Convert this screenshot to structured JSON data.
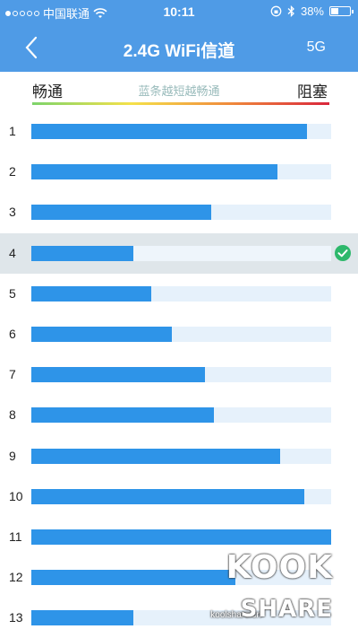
{
  "status": {
    "carrier": "中国联通",
    "time": "10:11",
    "battery": "38%",
    "battery_level": 0.38
  },
  "nav": {
    "title": "2.4G WiFi信道",
    "band_toggle": "5G"
  },
  "legend": {
    "left": "畅通",
    "hint": "蓝条越短越畅通",
    "right": "阻塞"
  },
  "channels": [
    {
      "label": "1",
      "congestion": 0.92,
      "selected": false
    },
    {
      "label": "2",
      "congestion": 0.82,
      "selected": false
    },
    {
      "label": "3",
      "congestion": 0.6,
      "selected": false
    },
    {
      "label": "4",
      "congestion": 0.34,
      "selected": true
    },
    {
      "label": "5",
      "congestion": 0.4,
      "selected": false
    },
    {
      "label": "6",
      "congestion": 0.47,
      "selected": false
    },
    {
      "label": "7",
      "congestion": 0.58,
      "selected": false
    },
    {
      "label": "8",
      "congestion": 0.61,
      "selected": false
    },
    {
      "label": "9",
      "congestion": 0.83,
      "selected": false
    },
    {
      "label": "10",
      "congestion": 0.91,
      "selected": false
    },
    {
      "label": "11",
      "congestion": 1.0,
      "selected": false
    },
    {
      "label": "12",
      "congestion": 0.68,
      "selected": false
    },
    {
      "label": "13",
      "congestion": 0.34,
      "selected": false
    }
  ],
  "watermark": {
    "line1": "KOOK",
    "line2": "SHARE",
    "site": "koolshare.cn"
  },
  "colors": {
    "bar": "#2e94e8",
    "track": "#e6f1fb",
    "header": "#4f9be6",
    "check": "#2db86b"
  }
}
